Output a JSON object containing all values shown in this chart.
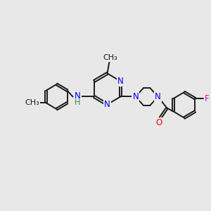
{
  "bg_color": "#e8e8e8",
  "bond_color": "#1a1a1a",
  "N_color": "#0000ee",
  "NH_N_color": "#0000ee",
  "H_color": "#2e8b57",
  "O_color": "#ff0000",
  "F_color": "#dd00cc",
  "font_size": 8.5,
  "bond_width": 1.4,
  "dbo": 0.055,
  "xlim": [
    0,
    10
  ],
  "ylim": [
    0,
    10
  ]
}
